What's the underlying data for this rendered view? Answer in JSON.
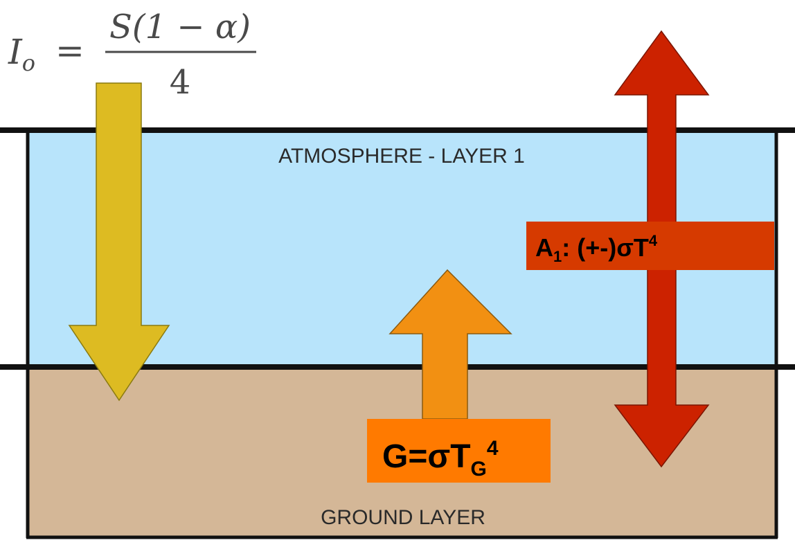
{
  "formula": {
    "lhs_symbol": "I",
    "lhs_subscript": "o",
    "equals": "=",
    "numerator": "S(1 − α)",
    "denominator": "4"
  },
  "layers": {
    "atmosphere_label": "ATMOSPHERE - LAYER 1",
    "ground_label": "GROUND LAYER"
  },
  "labels": {
    "ground_emission": {
      "main": "G=σT",
      "subscript": "G",
      "superscript": "4"
    },
    "atmosphere_emission": {
      "prefix": "A",
      "subscript": "1",
      "middle": ": (+-)σT",
      "superscript": "4"
    }
  },
  "colors": {
    "atmosphere": "#b8e4fb",
    "ground": "#d4b797",
    "solar_arrow": "#ddbb22",
    "ground_arrow": "#f29012",
    "atmosphere_arrow": "#cc2200",
    "ground_label_box": "#ff7a00",
    "atmosphere_label_box": "#d63a00"
  }
}
